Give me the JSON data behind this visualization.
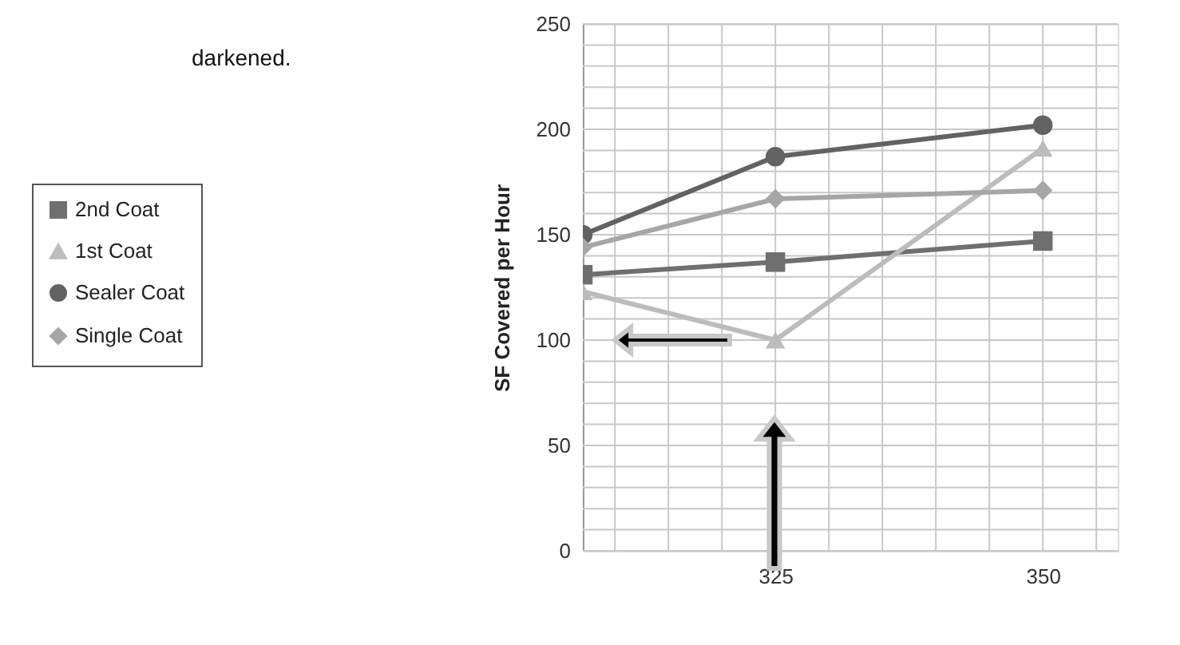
{
  "chart_data": {
    "type": "line",
    "ylabel": "SF Covered per Hour",
    "annotations": [
      "darkened."
    ],
    "x": [
      307,
      325,
      350
    ],
    "series": [
      {
        "name": "2nd Coat",
        "color": "#6f6f6f",
        "marker": "square",
        "values": [
          131,
          137,
          147
        ]
      },
      {
        "name": "1st Coat",
        "color": "#bcbcbc",
        "marker": "triangle",
        "values": [
          123,
          100,
          191
        ]
      },
      {
        "name": "Sealer Coat",
        "color": "#626262",
        "marker": "circle",
        "values": [
          150,
          187,
          202
        ]
      },
      {
        "name": "Single Coat",
        "color": "#a6a6a6",
        "marker": "diamond",
        "values": [
          144,
          167,
          171
        ]
      }
    ],
    "xlim": [
      307,
      357
    ],
    "xticks": [
      {
        "value": 310,
        "label": null
      },
      {
        "value": 315,
        "label": null
      },
      {
        "value": 320,
        "label": null
      },
      325,
      {
        "value": 330,
        "label": null
      },
      {
        "value": 335,
        "label": null
      },
      {
        "value": 340,
        "label": null
      },
      {
        "value": 345,
        "label": null
      },
      350,
      {
        "value": 355,
        "label": null
      }
    ],
    "ylim": [
      0,
      250
    ],
    "yticks": [
      0,
      {
        "value": 10,
        "label": null
      },
      {
        "value": 20,
        "label": null
      },
      {
        "value": 30,
        "label": null
      },
      {
        "value": 40,
        "label": null
      },
      50,
      {
        "value": 60,
        "label": null
      },
      {
        "value": 70,
        "label": null
      },
      {
        "value": 80,
        "label": null
      },
      {
        "value": 90,
        "label": null
      },
      100,
      {
        "value": 110,
        "label": null
      },
      {
        "value": 120,
        "label": null
      },
      {
        "value": 130,
        "label": null
      },
      {
        "value": 140,
        "label": null
      },
      150,
      {
        "value": 160,
        "label": null
      },
      {
        "value": 170,
        "label": null
      },
      {
        "value": 180,
        "label": null
      },
      {
        "value": 190,
        "label": null
      },
      200,
      {
        "value": 210,
        "label": null
      },
      {
        "value": 220,
        "label": null
      },
      {
        "value": 230,
        "label": null
      },
      {
        "value": 240,
        "label": null
      },
      250
    ],
    "grid": true,
    "legend": "left",
    "line_style": "solid"
  }
}
